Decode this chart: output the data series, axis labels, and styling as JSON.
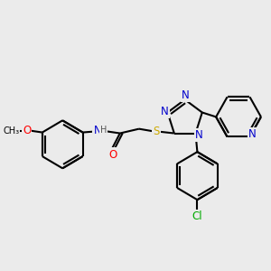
{
  "bg_color": "#ebebeb",
  "bond_color": "#000000",
  "bond_width": 1.5,
  "atom_colors": {
    "N": "#0000cc",
    "O": "#ff0000",
    "S": "#ccaa00",
    "Cl": "#00aa00",
    "C": "#000000",
    "H": "#555555"
  },
  "font_size_atom": 8.5,
  "font_size_small": 7.0
}
